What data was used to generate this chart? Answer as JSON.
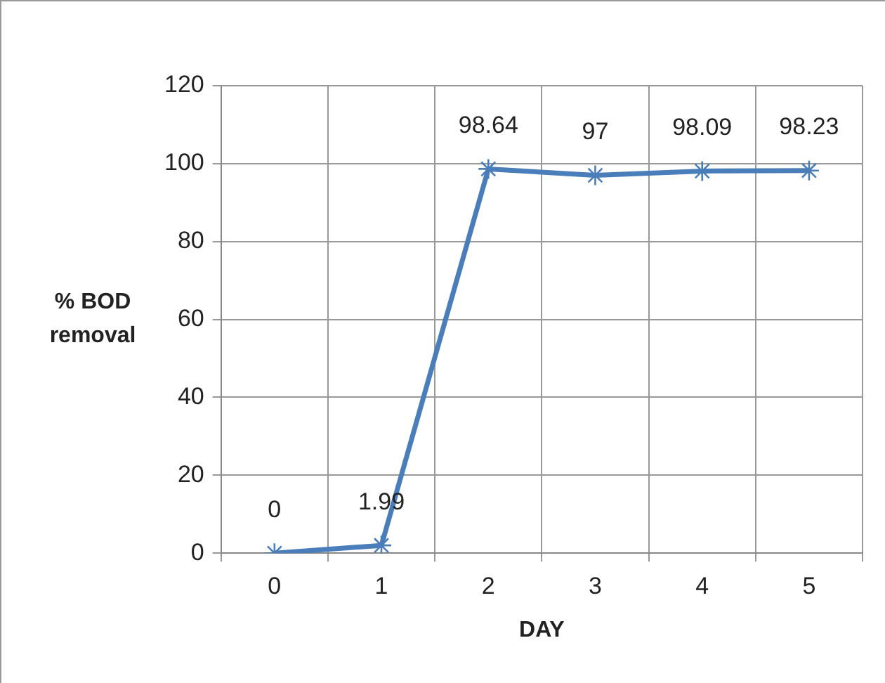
{
  "chart_data": {
    "type": "line",
    "xlabel": "DAY",
    "ylabel": "% BOD removal",
    "categories": [
      "0",
      "1",
      "2",
      "3",
      "4",
      "5"
    ],
    "series": [
      {
        "color": "#4a7ebb",
        "values": [
          0,
          1.99,
          98.64,
          97,
          98.09,
          98.23
        ]
      }
    ],
    "ylim": [
      0,
      120
    ],
    "yticks": [
      0,
      20,
      40,
      60,
      80,
      100,
      120
    ],
    "grid": true,
    "legend": false,
    "marker": "cross",
    "line_style": "solid",
    "data_labels": true
  }
}
